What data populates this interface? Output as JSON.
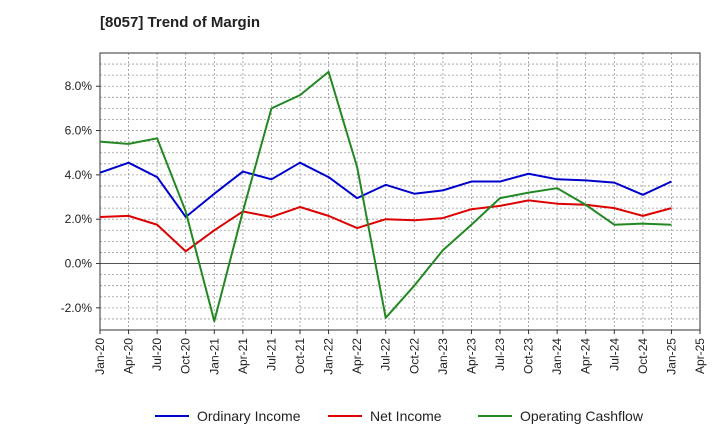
{
  "chart_data": {
    "type": "line",
    "title": "[8057]  Trend of Margin",
    "xlabel": "",
    "ylabel": "",
    "x": [
      "Jan-20",
      "Apr-20",
      "Jul-20",
      "Oct-20",
      "Jan-21",
      "Apr-21",
      "Jul-21",
      "Oct-21",
      "Jan-22",
      "Apr-22",
      "Jul-22",
      "Oct-22",
      "Jan-23",
      "Apr-23",
      "Jul-23",
      "Oct-23",
      "Jan-24",
      "Apr-24",
      "Jul-24",
      "Oct-24",
      "Jan-25",
      "Apr-25"
    ],
    "ylim": [
      -3.0,
      9.5
    ],
    "yticks": [
      -2.0,
      0.0,
      2.0,
      4.0,
      6.0,
      8.0
    ],
    "ytick_labels": [
      "-2.0%",
      "0.0%",
      "2.0%",
      "4.0%",
      "6.0%",
      "8.0%"
    ],
    "grid": true,
    "legend_position": "bottom",
    "series": [
      {
        "name": "Ordinary Income",
        "color": "#0000cc",
        "values": [
          4.1,
          4.55,
          3.9,
          2.1,
          3.15,
          4.15,
          3.8,
          4.55,
          3.9,
          2.95,
          3.55,
          3.15,
          3.3,
          3.7,
          3.7,
          4.05,
          3.8,
          3.75,
          3.65,
          3.1,
          3.7,
          null
        ]
      },
      {
        "name": "Net Income",
        "color": "#dd0000",
        "values": [
          2.1,
          2.15,
          1.75,
          0.55,
          1.5,
          2.35,
          2.1,
          2.55,
          2.15,
          1.6,
          2.0,
          1.95,
          2.05,
          2.45,
          2.6,
          2.85,
          2.7,
          2.65,
          2.5,
          2.15,
          2.5,
          null
        ]
      },
      {
        "name": "Operating Cashflow",
        "color": "#228822",
        "values": [
          5.5,
          5.4,
          5.65,
          2.35,
          -2.6,
          2.35,
          7.0,
          7.6,
          8.65,
          4.35,
          -2.45,
          -1.0,
          0.6,
          1.75,
          2.95,
          3.2,
          3.4,
          2.65,
          1.75,
          1.8,
          1.75,
          null
        ]
      }
    ]
  }
}
